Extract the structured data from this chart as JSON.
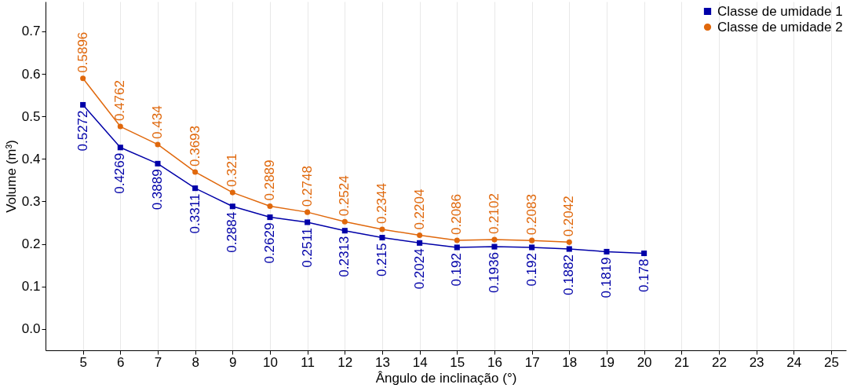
{
  "chart_data": {
    "type": "line",
    "xlabel": "Ângulo de inclinação (°)",
    "ylabel": "Volume (m³)",
    "xlim": [
      4,
      25.4
    ],
    "xticks": [
      5,
      6,
      7,
      8,
      9,
      10,
      11,
      12,
      13,
      14,
      15,
      16,
      17,
      18,
      19,
      20,
      21,
      22,
      23,
      24,
      25
    ],
    "ylim": [
      -0.05,
      0.77
    ],
    "yticks": [
      {
        "value": 0,
        "label": "0.0"
      },
      0.1,
      0.2,
      0.3,
      0.4,
      0.5,
      0.6,
      0.7
    ],
    "grid": "x",
    "legend": "top right",
    "data_labels": true,
    "series": [
      {
        "name": "Classe de umidade 1",
        "color": "#0000a8",
        "marker": "square",
        "x": [
          5,
          6,
          7,
          8,
          9,
          10,
          11,
          12,
          13,
          14,
          15,
          16,
          17,
          18,
          19,
          20
        ],
        "values": [
          0.5272,
          0.4269,
          0.3889,
          0.3311,
          0.2884,
          0.2629,
          0.2511,
          0.2313,
          0.215,
          0.2024,
          0.192,
          0.1936,
          0.192,
          0.1882,
          0.1819,
          0.178
        ]
      },
      {
        "name": "Classe de umidade 2",
        "color": "#e0680c",
        "marker": "circle",
        "x": [
          5,
          6,
          7,
          8,
          9,
          10,
          11,
          12,
          13,
          14,
          15,
          16,
          17,
          18
        ],
        "values": [
          0.5896,
          0.4762,
          0.434,
          0.3693,
          0.321,
          0.2889,
          0.2748,
          0.2524,
          0.2344,
          0.2204,
          0.2086,
          0.2102,
          0.2083,
          0.2042
        ]
      }
    ]
  }
}
